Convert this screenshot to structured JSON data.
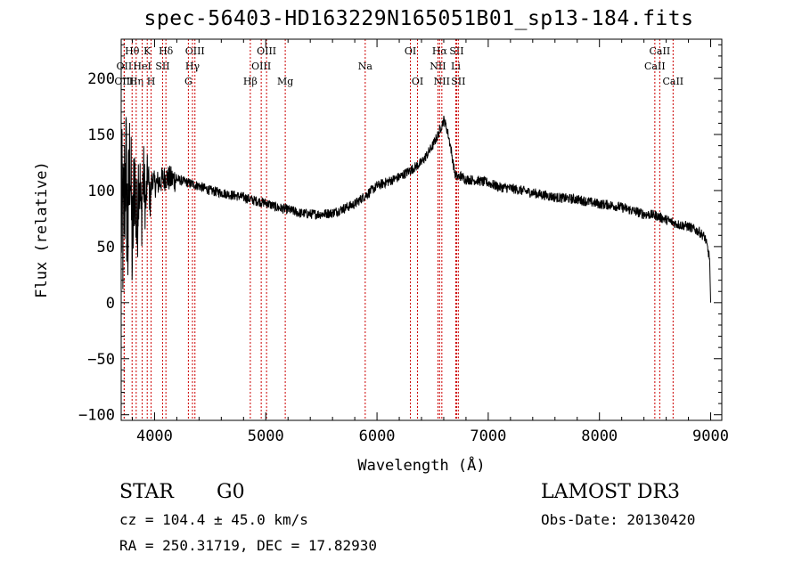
{
  "chart_data": {
    "type": "line",
    "title": "spec-56403-HD163229N165051B01_sp13-184.fits",
    "xlabel": "Wavelength (Å)",
    "ylabel": "Flux (relative)",
    "xlim": [
      3700,
      9100
    ],
    "ylim": [
      -105,
      235
    ],
    "xticks": [
      4000,
      5000,
      6000,
      7000,
      8000,
      9000
    ],
    "yticks": [
      -100,
      -50,
      0,
      50,
      100,
      150,
      200
    ],
    "series": [
      {
        "name": "flux",
        "x": [
          3700,
          3720,
          3740,
          3760,
          3780,
          3800,
          3820,
          3840,
          3860,
          3880,
          3900,
          3920,
          3940,
          3960,
          3980,
          4000,
          4050,
          4100,
          4150,
          4200,
          4300,
          4400,
          4500,
          4600,
          4700,
          4800,
          4900,
          5000,
          5100,
          5200,
          5300,
          5400,
          5500,
          5600,
          5700,
          5800,
          5900,
          6000,
          6100,
          6200,
          6300,
          6400,
          6450,
          6500,
          6550,
          6580,
          6600,
          6620,
          6640,
          6660,
          6700,
          6720,
          6750,
          6800,
          6900,
          7000,
          7100,
          7200,
          7300,
          7400,
          7500,
          7600,
          7700,
          7800,
          7900,
          8000,
          8100,
          8200,
          8300,
          8400,
          8500,
          8550,
          8600,
          8650,
          8700,
          8800,
          8900,
          8950,
          8990,
          9000
        ],
        "y": [
          80,
          60,
          130,
          55,
          140,
          40,
          120,
          60,
          125,
          75,
          115,
          85,
          118,
          90,
          112,
          105,
          108,
          112,
          110,
          110,
          107,
          104,
          100,
          98,
          96,
          94,
          91,
          89,
          85,
          83,
          80,
          79,
          79,
          80,
          84,
          88,
          96,
          104,
          108,
          112,
          118,
          125,
          132,
          140,
          150,
          158,
          163,
          158,
          150,
          140,
          115,
          112,
          113,
          110,
          109,
          107,
          103,
          102,
          100,
          98,
          96,
          94,
          93,
          92,
          90,
          88,
          87,
          85,
          82,
          79,
          78,
          76,
          74,
          72,
          70,
          68,
          63,
          58,
          40,
          0
        ]
      }
    ],
    "annotations": [
      {
        "label": "Hθ",
        "x": 3798,
        "row": 1
      },
      {
        "label": "OII",
        "x": 3727,
        "row": 2
      },
      {
        "label": "OIII",
        "x": 3727,
        "row": 3
      },
      {
        "label": "Hη",
        "x": 3835,
        "row": 3
      },
      {
        "label": "HeI",
        "x": 3889,
        "row": 2
      },
      {
        "label": "K",
        "x": 3934,
        "row": 1
      },
      {
        "label": "H",
        "x": 3969,
        "row": 3
      },
      {
        "label": "SII",
        "x": 4072,
        "row": 2
      },
      {
        "label": "Hδ",
        "x": 4102,
        "row": 1
      },
      {
        "label": "OIII",
        "x": 4363,
        "row": 1
      },
      {
        "label": "Hγ",
        "x": 4341,
        "row": 2
      },
      {
        "label": "G",
        "x": 4304,
        "row": 3
      },
      {
        "label": "Hβ",
        "x": 4861,
        "row": 3
      },
      {
        "label": "OIII",
        "x": 4959,
        "row": 2
      },
      {
        "label": "OIII",
        "x": 5007,
        "row": 1
      },
      {
        "label": "Mg",
        "x": 5175,
        "row": 3
      },
      {
        "label": "Na",
        "x": 5894,
        "row": 2
      },
      {
        "label": "OI",
        "x": 6300,
        "row": 1
      },
      {
        "label": "OI",
        "x": 6364,
        "row": 3
      },
      {
        "label": "Hα",
        "x": 6563,
        "row": 1
      },
      {
        "label": "NII",
        "x": 6548,
        "row": 2
      },
      {
        "label": "NII",
        "x": 6583,
        "row": 3
      },
      {
        "label": "SII",
        "x": 6716,
        "row": 1
      },
      {
        "label": "Li",
        "x": 6708,
        "row": 2
      },
      {
        "label": "SII",
        "x": 6731,
        "row": 3
      },
      {
        "label": "CaII",
        "x": 8542,
        "row": 1
      },
      {
        "label": "CaII",
        "x": 8498,
        "row": 2
      },
      {
        "label": "CaII",
        "x": 8662,
        "row": 3
      }
    ]
  },
  "info": {
    "object_type": "STAR",
    "object_class": "G0",
    "survey": "LAMOST DR3",
    "redshift": "cz = 104.4 ± 45.0 km/s",
    "obs_date": "Obs-Date: 20130420",
    "coords": "RA = 250.31719, DEC =  17.82930"
  }
}
